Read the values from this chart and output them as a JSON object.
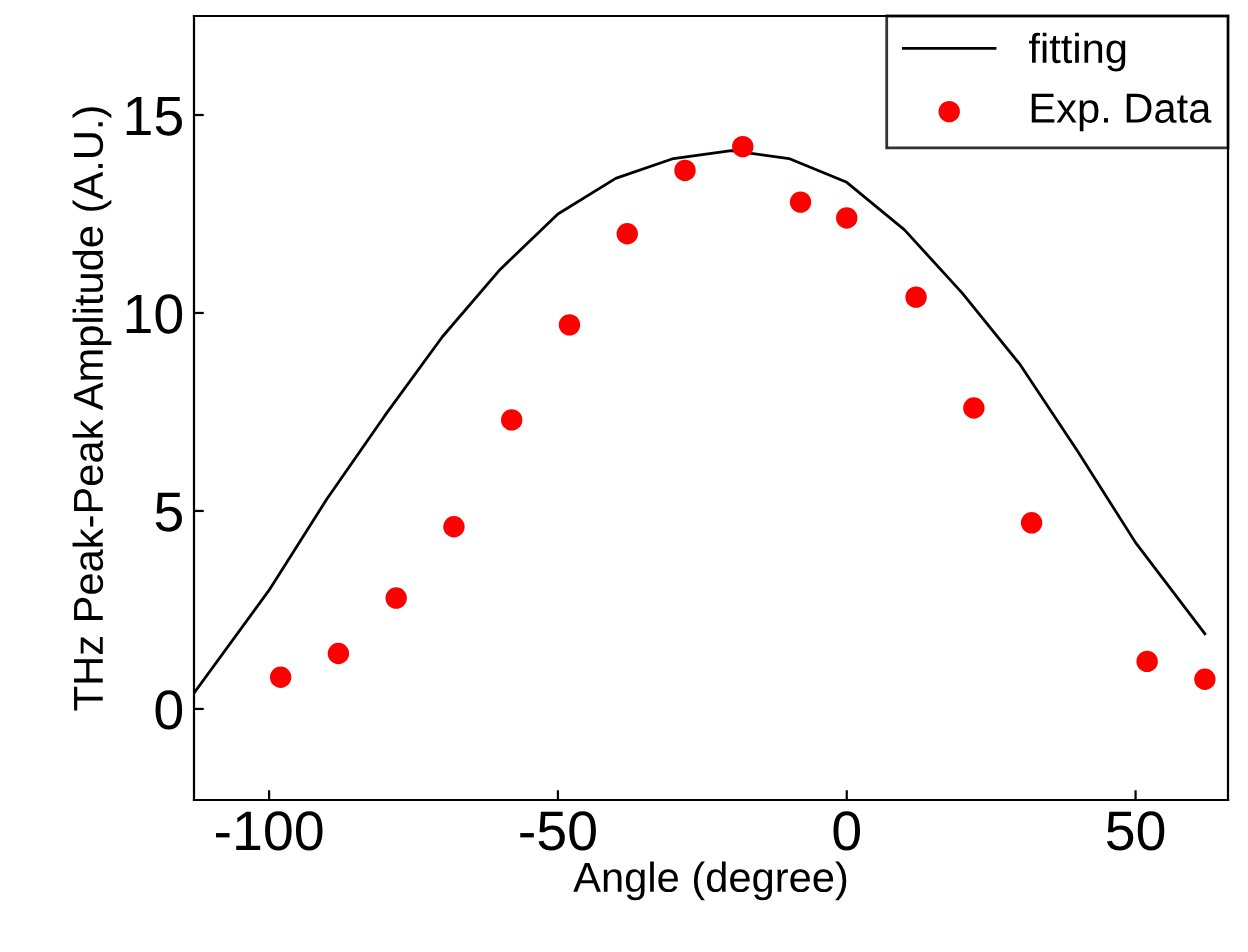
{
  "chart_data": {
    "type": "scatter",
    "xlabel": "Angle (degree)",
    "ylabel": "THz Peak-Peak Amplitude (A.U.)",
    "xlim": [
      -113,
      66
    ],
    "ylim": [
      -2.3,
      17.5
    ],
    "xticks": [
      -100,
      -50,
      0,
      50
    ],
    "yticks": [
      0,
      5,
      10,
      15
    ],
    "grid": false,
    "legend": "top right",
    "series": [
      {
        "name": "fitting",
        "type": "line",
        "color": "#000000",
        "marker": "none",
        "line_style": "solid",
        "x": [
          -113,
          -100,
          -90,
          -80,
          -70,
          -60,
          -50,
          -40,
          -30,
          -20,
          -10,
          0,
          10,
          20,
          30,
          40,
          50,
          62
        ],
        "values": [
          0.4,
          3.0,
          5.3,
          7.4,
          9.4,
          11.1,
          12.5,
          13.4,
          13.9,
          14.1,
          13.9,
          13.3,
          12.1,
          10.5,
          8.7,
          6.5,
          4.2,
          1.9
        ]
      },
      {
        "name": "Exp. Data",
        "color": "#ff0000",
        "marker": "circle",
        "x": [
          -98,
          -88,
          -78,
          -68,
          -58,
          -48,
          -38,
          -28,
          -18,
          -8,
          0,
          12,
          22,
          32,
          52,
          62
        ],
        "values": [
          0.8,
          1.4,
          2.8,
          4.6,
          7.3,
          9.7,
          12.0,
          13.6,
          14.2,
          12.8,
          12.4,
          10.4,
          7.6,
          4.7,
          1.2,
          0.75
        ]
      }
    ]
  }
}
